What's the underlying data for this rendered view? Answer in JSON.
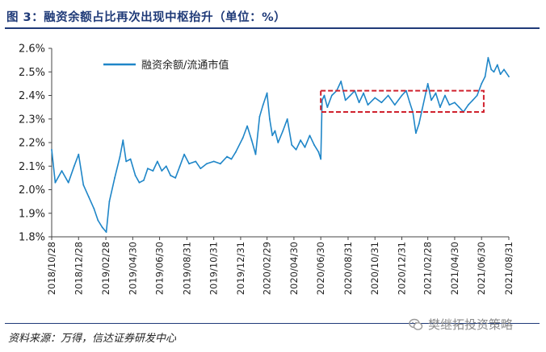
{
  "figure": {
    "title": "图 3：融资余额占比再次出现中枢抬升（单位：%）",
    "source": "资料来源：万得，信达证券研发中心",
    "watermark": "樊继拓投资策略"
  },
  "colors": {
    "line": "#1f86c8",
    "box": "#d0212d",
    "title": "#1f3a78"
  },
  "chart_data": {
    "type": "line",
    "title": "",
    "xlabel": "",
    "ylabel": "",
    "ylim": [
      1.8,
      2.6
    ],
    "yticks": [
      "1.8%",
      "1.9%",
      "2.0%",
      "2.1%",
      "2.2%",
      "2.3%",
      "2.4%",
      "2.5%",
      "2.6%"
    ],
    "xticks": [
      "2018/10/28",
      "2018/12/28",
      "2019/02/28",
      "2019/04/30",
      "2019/06/30",
      "2019/08/31",
      "2019/10/31",
      "2019/12/31",
      "2020/02/29",
      "2020/04/30",
      "2020/06/30",
      "2020/08/31",
      "2020/10/31",
      "2020/12/31",
      "2021/02/28",
      "2021/04/30",
      "2021/06/30",
      "2021/08/31"
    ],
    "grid": false,
    "legend": "top-left",
    "series": [
      {
        "name": "融资余额/流通市值",
        "x": [
          "2018/10/28",
          "2018/11/05",
          "2018/11/20",
          "2018/12/05",
          "2018/12/18",
          "2018/12/28",
          "2019/01/08",
          "2019/01/20",
          "2019/02/01",
          "2019/02/10",
          "2019/02/20",
          "2019/03/01",
          "2019/03/08",
          "2019/03/20",
          "2019/04/01",
          "2019/04/08",
          "2019/04/15",
          "2019/04/25",
          "2019/05/06",
          "2019/05/15",
          "2019/05/25",
          "2019/06/03",
          "2019/06/15",
          "2019/06/25",
          "2019/07/05",
          "2019/07/15",
          "2019/07/25",
          "2019/08/05",
          "2019/08/15",
          "2019/08/25",
          "2019/09/05",
          "2019/09/20",
          "2019/10/01",
          "2019/10/15",
          "2019/10/31",
          "2019/11/15",
          "2019/11/30",
          "2019/12/10",
          "2019/12/20",
          "2020/01/05",
          "2020/01/15",
          "2020/01/25",
          "2020/02/03",
          "2020/02/12",
          "2020/02/20",
          "2020/02/29",
          "2020/03/06",
          "2020/03/12",
          "2020/03/18",
          "2020/03/25",
          "2020/04/05",
          "2020/04/15",
          "2020/04/25",
          "2020/05/05",
          "2020/05/15",
          "2020/05/25",
          "2020/06/05",
          "2020/06/15",
          "2020/06/25",
          "2020/06/30",
          "2020/07/03",
          "2020/07/08",
          "2020/07/15",
          "2020/07/25",
          "2020/08/05",
          "2020/08/15",
          "2020/08/25",
          "2020/09/05",
          "2020/09/15",
          "2020/09/25",
          "2020/10/05",
          "2020/10/15",
          "2020/10/31",
          "2020/11/15",
          "2020/11/30",
          "2020/12/15",
          "2020/12/31",
          "2021/01/10",
          "2021/01/18",
          "2021/01/25",
          "2021/02/01",
          "2021/02/08",
          "2021/02/15",
          "2021/02/28",
          "2021/03/08",
          "2021/03/18",
          "2021/03/28",
          "2021/04/08",
          "2021/04/18",
          "2021/04/30",
          "2021/05/10",
          "2021/05/20",
          "2021/05/31",
          "2021/06/10",
          "2021/06/20",
          "2021/06/30",
          "2021/07/08",
          "2021/07/15",
          "2021/07/22",
          "2021/07/28",
          "2021/08/05",
          "2021/08/12",
          "2021/08/20",
          "2021/08/31"
        ],
        "values": [
          2.17,
          2.03,
          2.08,
          2.03,
          2.1,
          2.15,
          2.02,
          1.97,
          1.92,
          1.87,
          1.84,
          1.82,
          1.95,
          2.05,
          2.14,
          2.21,
          2.12,
          2.13,
          2.06,
          2.03,
          2.04,
          2.09,
          2.08,
          2.12,
          2.08,
          2.1,
          2.06,
          2.05,
          2.1,
          2.15,
          2.11,
          2.12,
          2.09,
          2.11,
          2.12,
          2.11,
          2.14,
          2.13,
          2.16,
          2.22,
          2.27,
          2.21,
          2.15,
          2.31,
          2.36,
          2.41,
          2.3,
          2.23,
          2.25,
          2.2,
          2.25,
          2.3,
          2.19,
          2.17,
          2.21,
          2.18,
          2.23,
          2.19,
          2.16,
          2.13,
          2.38,
          2.4,
          2.35,
          2.4,
          2.42,
          2.46,
          2.38,
          2.4,
          2.42,
          2.37,
          2.41,
          2.36,
          2.39,
          2.37,
          2.4,
          2.36,
          2.4,
          2.42,
          2.37,
          2.33,
          2.24,
          2.28,
          2.34,
          2.45,
          2.38,
          2.41,
          2.35,
          2.4,
          2.36,
          2.37,
          2.35,
          2.33,
          2.36,
          2.38,
          2.4,
          2.45,
          2.48,
          2.56,
          2.51,
          2.5,
          2.53,
          2.49,
          2.51,
          2.48
        ]
      }
    ],
    "highlight_box": {
      "x": [
        "2020/06/30",
        "2021/07/05"
      ],
      "y": [
        2.33,
        2.42
      ]
    }
  }
}
